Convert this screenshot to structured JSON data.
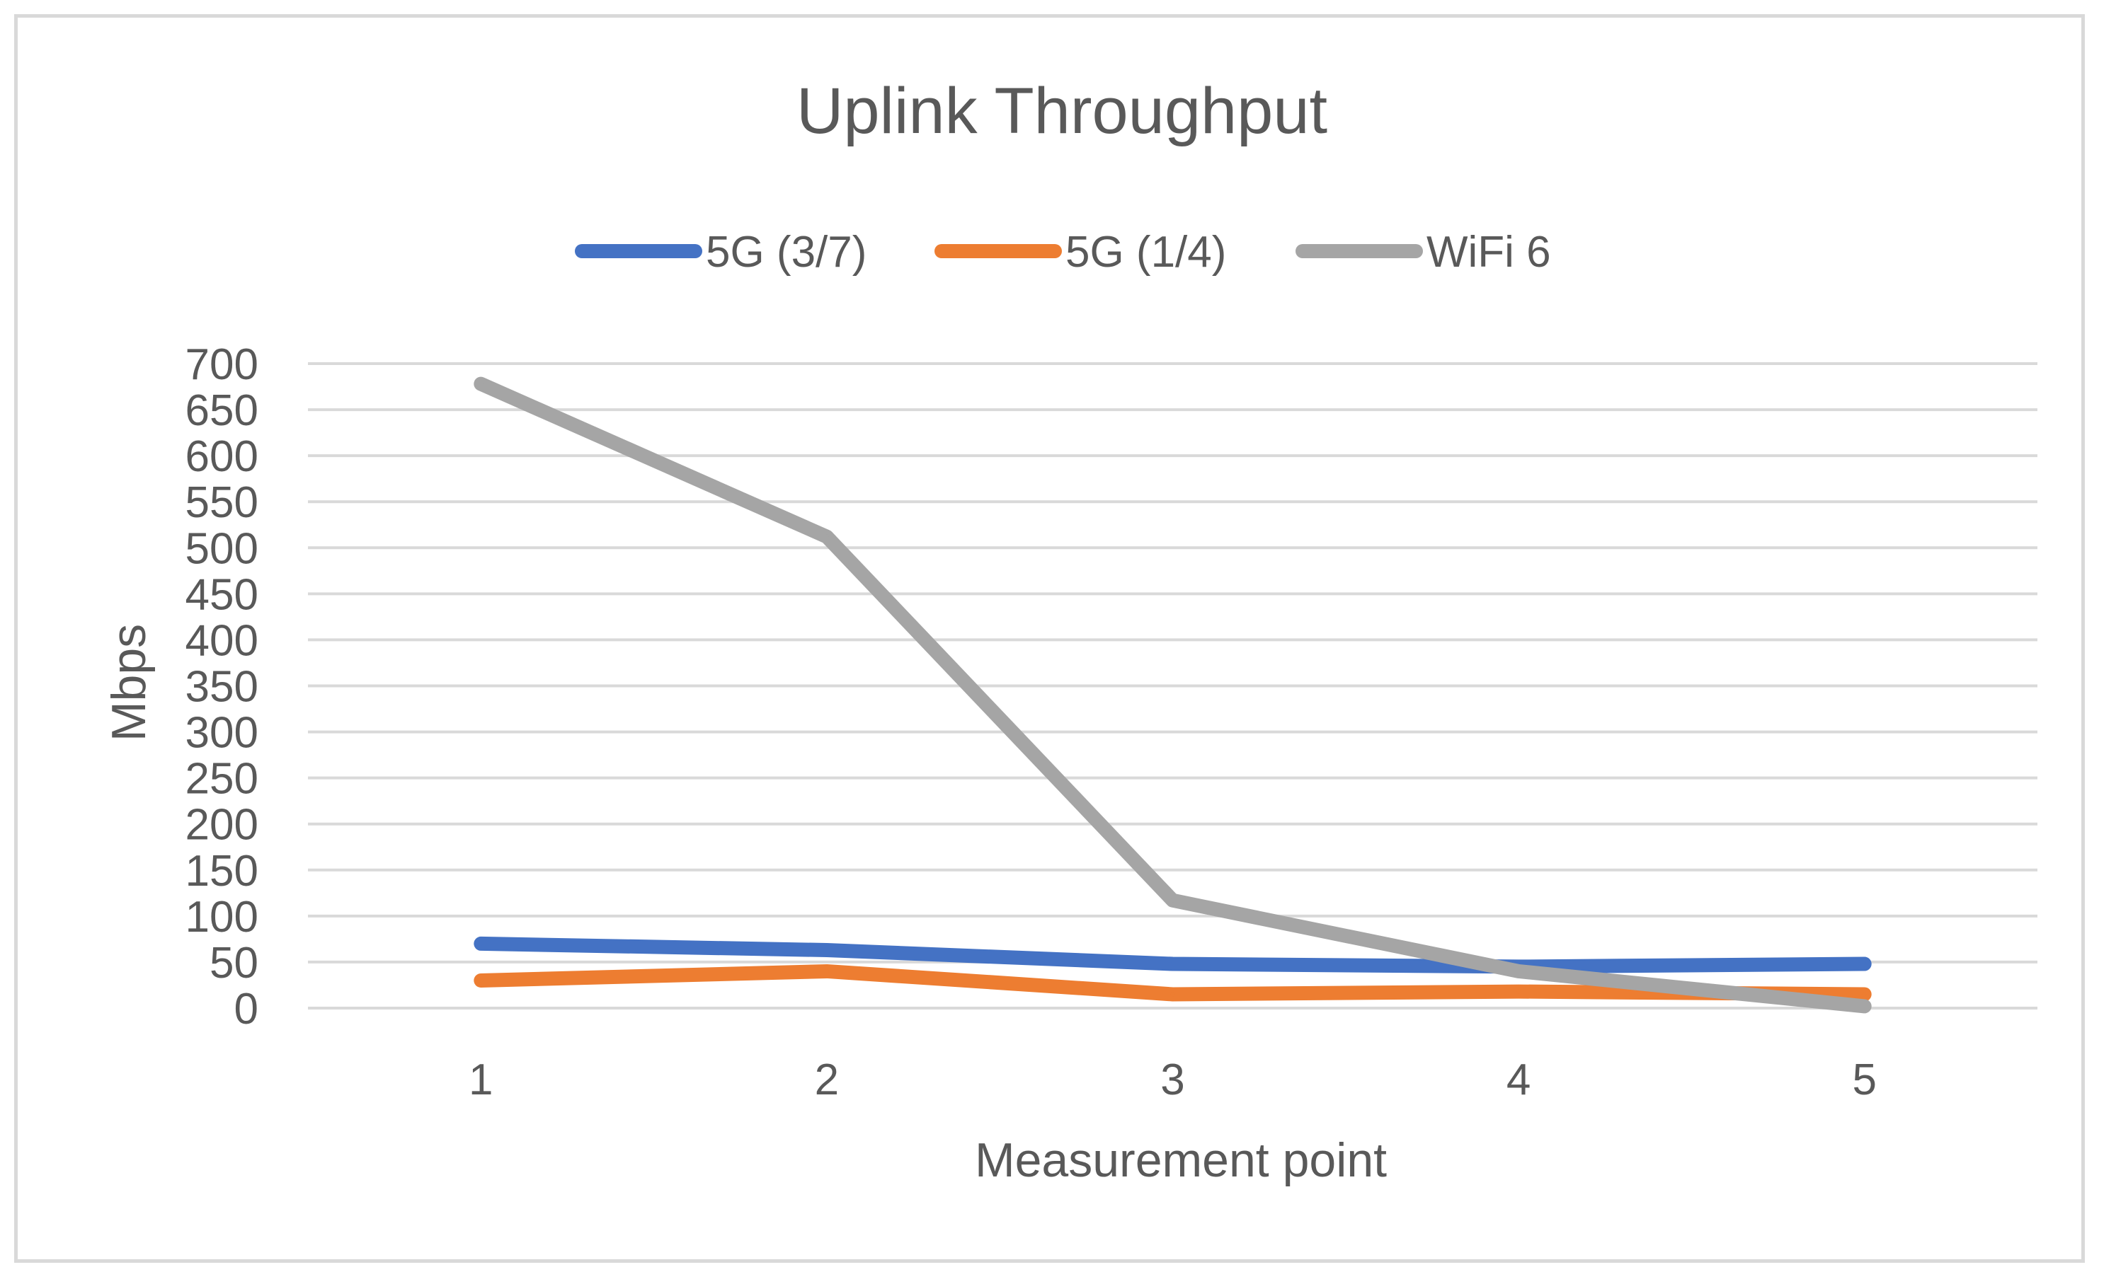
{
  "chart_data": {
    "type": "line",
    "title": "Uplink Throughput",
    "xlabel": "Measurement point",
    "ylabel": "Mbps",
    "categories": [
      "1",
      "2",
      "3",
      "4",
      "5"
    ],
    "ylim": [
      0,
      700
    ],
    "yticks": [
      0,
      50,
      100,
      150,
      200,
      250,
      300,
      350,
      400,
      450,
      500,
      550,
      600,
      650,
      700
    ],
    "grid": true,
    "legend_position": "top",
    "series": [
      {
        "name": "5G (3/7)",
        "color": "#4472c4",
        "values": [
          70,
          63,
          48,
          45,
          48
        ]
      },
      {
        "name": "5G (1/4)",
        "color": "#ed7d31",
        "values": [
          30,
          40,
          15,
          18,
          15
        ]
      },
      {
        "name": "WiFi 6",
        "color": "#a5a5a5",
        "values": [
          678,
          512,
          117,
          40,
          2
        ]
      }
    ]
  }
}
